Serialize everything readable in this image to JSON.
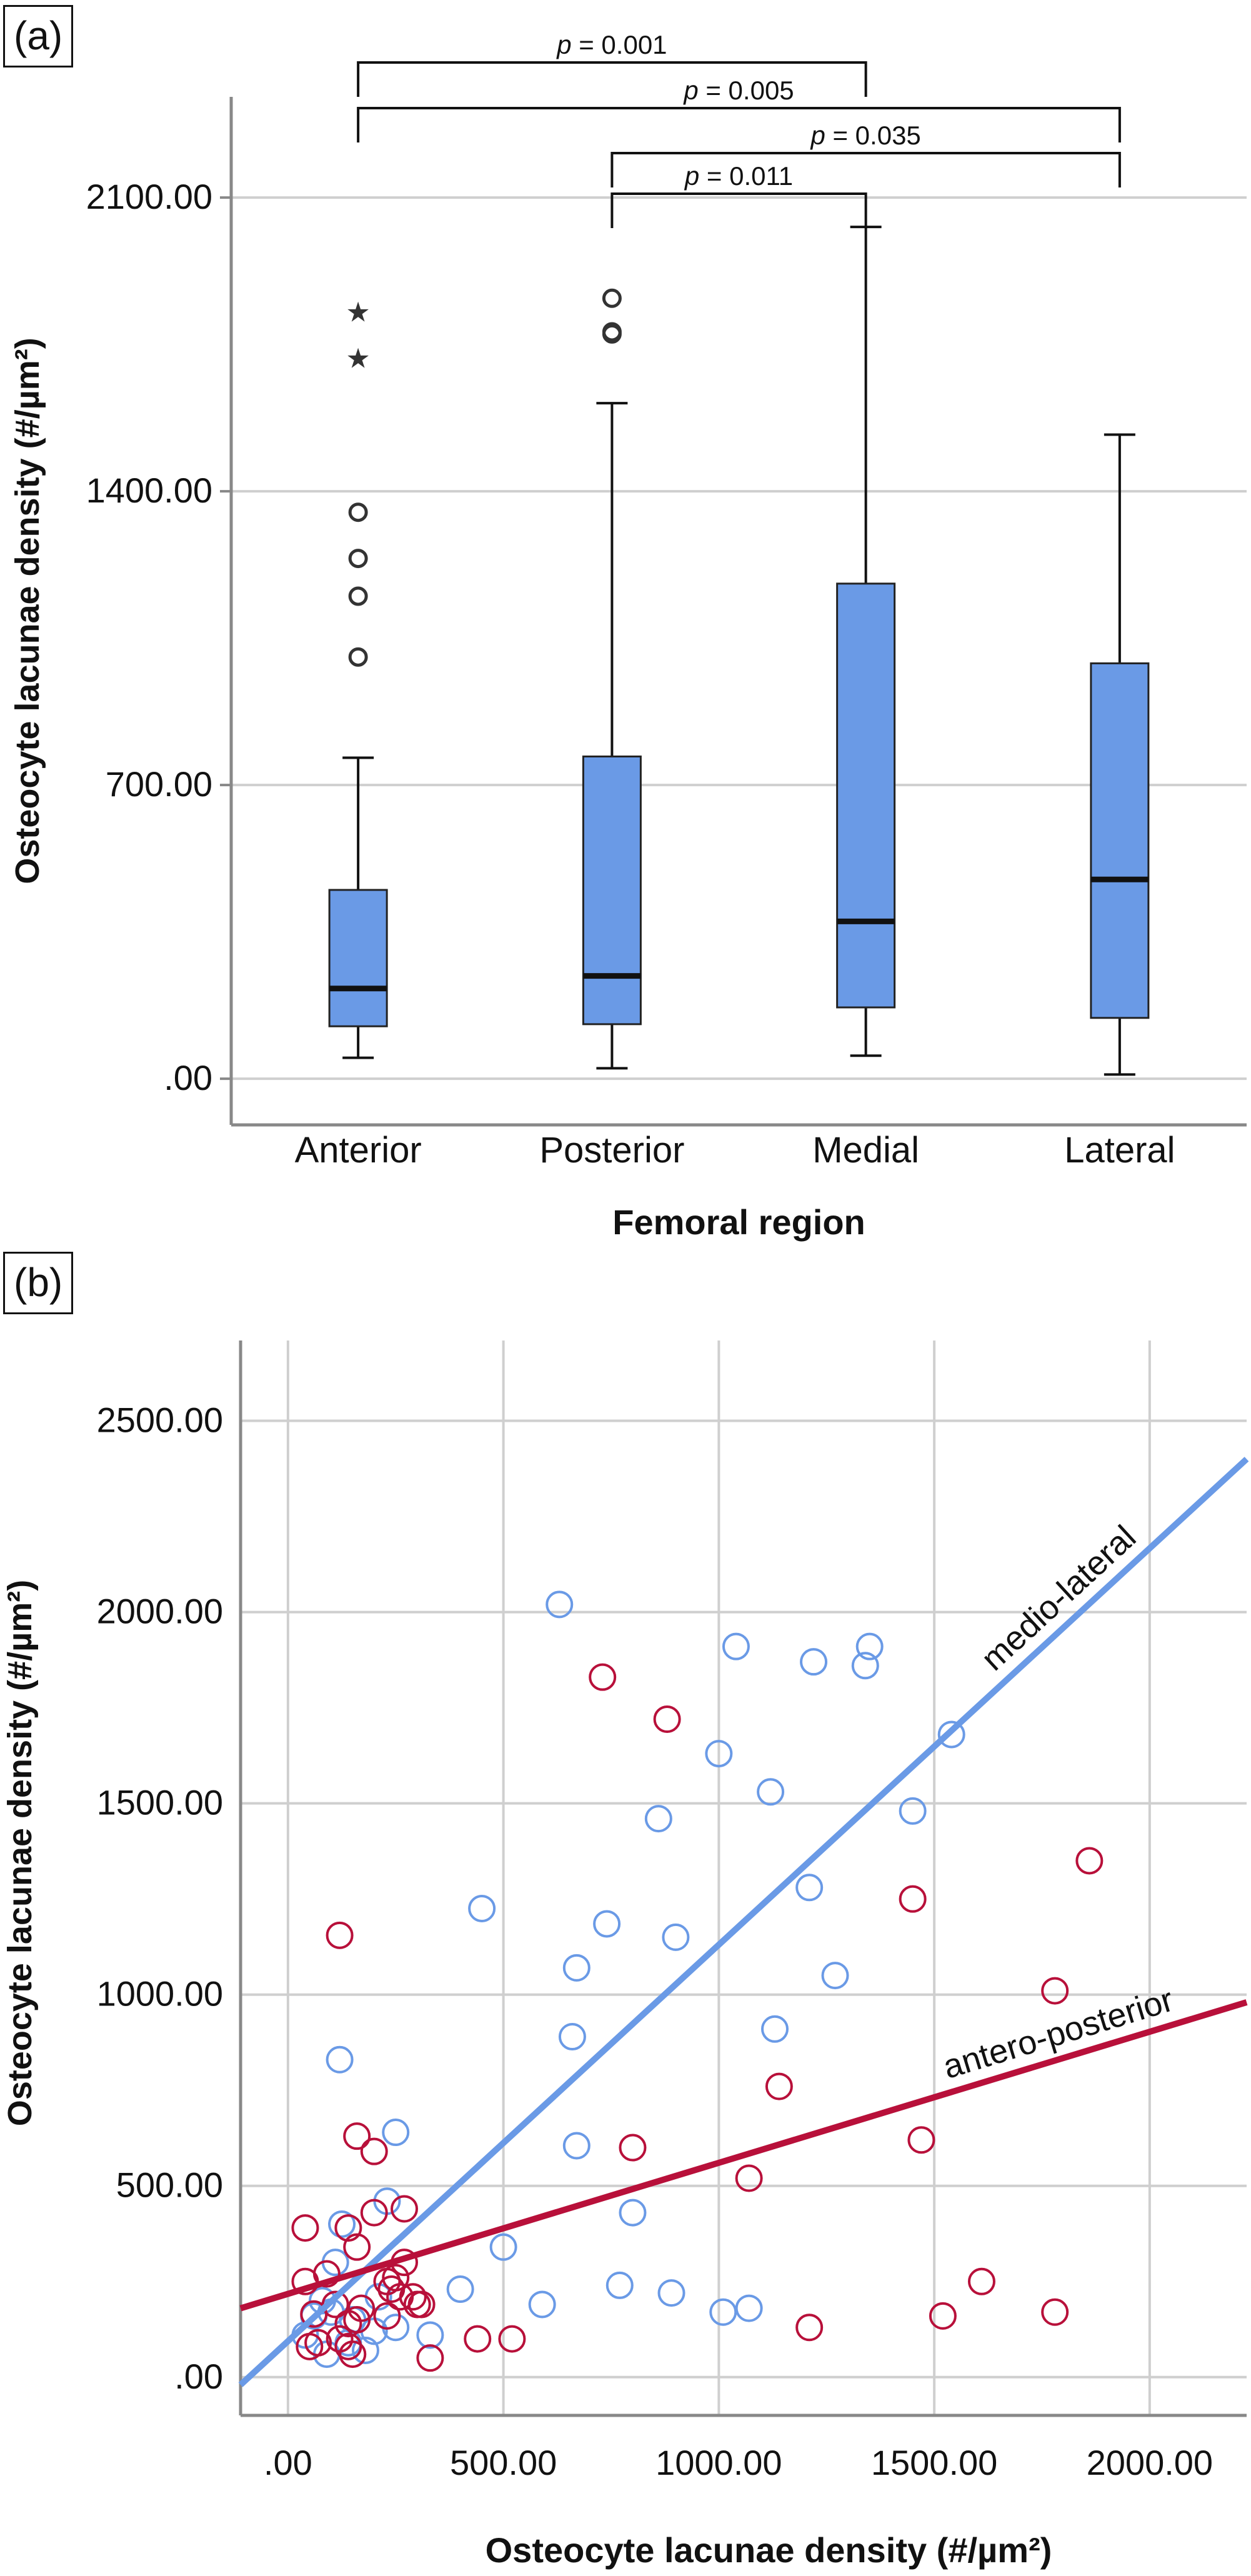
{
  "panels": {
    "a": {
      "label": "(a)"
    },
    "b": {
      "label": "(b)"
    }
  },
  "colors": {
    "box_fill": "#6a9ae6",
    "medio_lateral": "#6a9ae6",
    "antero_posterior": "#b8103a",
    "grid": "#cfcfcf",
    "axis": "#888888"
  },
  "chart_data": [
    {
      "type": "box",
      "ylabel": "Osteocyte lacunae density (#/µm²)",
      "xlabel": "Femoral region",
      "categories": [
        "Anterior",
        "Posterior",
        "Medial",
        "Lateral"
      ],
      "y_ticks": [
        0,
        700,
        1400,
        2100
      ],
      "y_tick_labels": [
        ".00",
        "700.00",
        "1400.00",
        "2100.00"
      ],
      "ylim": [
        -110,
        2340
      ],
      "grid": "horizontal",
      "boxes": [
        {
          "category": "Anterior",
          "whisker_low": 50,
          "q1": 125,
          "median": 215,
          "q3": 450,
          "whisker_high": 765,
          "outliers": [
            1005,
            1150,
            1240,
            1350
          ],
          "extremes": [
            1830,
            1720
          ]
        },
        {
          "category": "Posterior",
          "whisker_low": 25,
          "q1": 130,
          "median": 245,
          "q3": 768,
          "whisker_high": 1610,
          "outliers": [
            1775,
            1780,
            1860
          ],
          "extremes": []
        },
        {
          "category": "Medial",
          "whisker_low": 55,
          "q1": 170,
          "median": 375,
          "q3": 1180,
          "whisker_high": 2030,
          "outliers": [],
          "extremes": []
        },
        {
          "category": "Lateral",
          "whisker_low": 10,
          "q1": 145,
          "median": 475,
          "q3": 990,
          "whisker_high": 1535,
          "outliers": [],
          "extremes": []
        }
      ],
      "brackets": [
        {
          "from": "Anterior",
          "to": "Medial",
          "label": "p = 0.001",
          "p_prefix": "p",
          "p_rest": " = 0.001"
        },
        {
          "from": "Anterior",
          "to": "Lateral",
          "label": "p = 0.005",
          "p_prefix": "p",
          "p_rest": " = 0.005"
        },
        {
          "from": "Posterior",
          "to": "Lateral",
          "label": "p = 0.035",
          "p_prefix": "p",
          "p_rest": " = 0.035"
        },
        {
          "from": "Posterior",
          "to": "Medial",
          "label": "p = 0.011",
          "p_prefix": "p",
          "p_rest": " = 0.011"
        }
      ]
    },
    {
      "type": "scatter",
      "ylabel": "Osteocyte lacunae density (#/µm²)",
      "xlabel": "Osteocyte lacunae density (#/µm²)",
      "x_ticks": [
        0,
        500,
        1000,
        1500,
        2000
      ],
      "x_tick_labels": [
        ".00",
        "500.00",
        "1000.00",
        "1500.00",
        "2000.00"
      ],
      "y_ticks": [
        0,
        500,
        1000,
        1500,
        2000,
        2500
      ],
      "y_tick_labels": [
        ".00",
        "500.00",
        "1000.00",
        "1500.00",
        "2000.00",
        "2500.00"
      ],
      "xlim": [
        -110,
        2225
      ],
      "ylim": [
        -100,
        2710
      ],
      "grid": "both",
      "series": [
        {
          "name": "medio-lateral",
          "color": "#6a9ae6",
          "fit": [
            [
              -110,
              -20
            ],
            [
              2225,
              2400
            ]
          ],
          "points": [
            [
              630,
              2020
            ],
            [
              1040,
              1910
            ],
            [
              1350,
              1910
            ],
            [
              1220,
              1870
            ],
            [
              1340,
              1860
            ],
            [
              1540,
              1680
            ],
            [
              1000,
              1630
            ],
            [
              1120,
              1530
            ],
            [
              860,
              1460
            ],
            [
              1450,
              1480
            ],
            [
              450,
              1225
            ],
            [
              1210,
              1280
            ],
            [
              740,
              1185
            ],
            [
              900,
              1150
            ],
            [
              670,
              1070
            ],
            [
              1270,
              1050
            ],
            [
              660,
              890
            ],
            [
              1130,
              910
            ],
            [
              120,
              830
            ],
            [
              250,
              640
            ],
            [
              670,
              605
            ],
            [
              800,
              430
            ],
            [
              500,
              340
            ],
            [
              230,
              460
            ],
            [
              125,
              400
            ],
            [
              110,
              300
            ],
            [
              80,
              200
            ],
            [
              60,
              160
            ],
            [
              40,
              110
            ],
            [
              150,
              150
            ],
            [
              90,
              60
            ],
            [
              200,
              120
            ],
            [
              250,
              130
            ],
            [
              330,
              110
            ],
            [
              400,
              230
            ],
            [
              590,
              190
            ],
            [
              770,
              240
            ],
            [
              890,
              220
            ],
            [
              1010,
              170
            ],
            [
              1070,
              180
            ],
            [
              210,
              210
            ],
            [
              180,
              70
            ],
            [
              140,
              90
            ],
            [
              100,
              170
            ]
          ]
        },
        {
          "name": "antero-posterior",
          "color": "#b8103a",
          "fit": [
            [
              -110,
              180
            ],
            [
              2225,
              980
            ]
          ],
          "points": [
            [
              730,
              1830
            ],
            [
              880,
              1720
            ],
            [
              1860,
              1350
            ],
            [
              1450,
              1250
            ],
            [
              120,
              1155
            ],
            [
              1780,
              1010
            ],
            [
              1140,
              760
            ],
            [
              160,
              630
            ],
            [
              200,
              590
            ],
            [
              800,
              600
            ],
            [
              1470,
              620
            ],
            [
              1070,
              520
            ],
            [
              40,
              390
            ],
            [
              140,
              390
            ],
            [
              160,
              340
            ],
            [
              270,
              440
            ],
            [
              200,
              430
            ],
            [
              270,
              300
            ],
            [
              250,
              260
            ],
            [
              240,
              230
            ],
            [
              290,
              210
            ],
            [
              300,
              190
            ],
            [
              260,
              210
            ],
            [
              230,
              160
            ],
            [
              170,
              180
            ],
            [
              110,
              190
            ],
            [
              60,
              165
            ],
            [
              40,
              250
            ],
            [
              90,
              270
            ],
            [
              140,
              140
            ],
            [
              120,
              100
            ],
            [
              150,
              60
            ],
            [
              50,
              80
            ],
            [
              70,
              90
            ],
            [
              140,
              80
            ],
            [
              310,
              190
            ],
            [
              330,
              50
            ],
            [
              440,
              100
            ],
            [
              520,
              100
            ],
            [
              1210,
              130
            ],
            [
              1520,
              160
            ],
            [
              1610,
              250
            ],
            [
              1780,
              170
            ],
            [
              230,
              250
            ],
            [
              160,
              150
            ]
          ]
        }
      ],
      "annotations": [
        {
          "text": "medio-lateral",
          "series": "medio-lateral"
        },
        {
          "text": "antero-posterior",
          "series": "antero-posterior"
        }
      ]
    }
  ]
}
